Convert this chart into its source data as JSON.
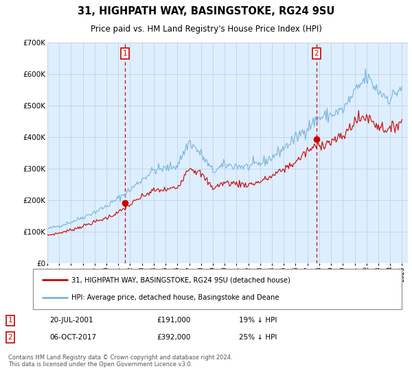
{
  "title1": "31, HIGHPATH WAY, BASINGSTOKE, RG24 9SU",
  "title2": "Price paid vs. HM Land Registry's House Price Index (HPI)",
  "legend_line1": "31, HIGHPATH WAY, BASINGSTOKE, RG24 9SU (detached house)",
  "legend_line2": "HPI: Average price, detached house, Basingstoke and Deane",
  "annotation1_label": "1",
  "annotation1_date": "20-JUL-2001",
  "annotation1_price": "£191,000",
  "annotation1_hpi": "19% ↓ HPI",
  "annotation2_label": "2",
  "annotation2_date": "06-OCT-2017",
  "annotation2_price": "£392,000",
  "annotation2_hpi": "25% ↓ HPI",
  "footer": "Contains HM Land Registry data © Crown copyright and database right 2024.\nThis data is licensed under the Open Government Licence v3.0.",
  "hpi_color": "#7ab4d8",
  "price_color": "#cc0000",
  "annot_color": "#cc0000",
  "ylim": [
    0,
    700000
  ],
  "yticks": [
    0,
    100000,
    200000,
    300000,
    400000,
    500000,
    600000,
    700000
  ],
  "ytick_labels": [
    "£0",
    "£100K",
    "£200K",
    "£300K",
    "£400K",
    "£500K",
    "£600K",
    "£700K"
  ],
  "sale1_x": 2001.55,
  "sale1_y": 191000,
  "sale2_x": 2017.76,
  "sale2_y": 392000,
  "xlim_min": 1995.0,
  "xlim_max": 2025.5,
  "xtick_years": [
    1995,
    1996,
    1997,
    1998,
    1999,
    2000,
    2001,
    2002,
    2003,
    2004,
    2005,
    2006,
    2007,
    2008,
    2009,
    2010,
    2011,
    2012,
    2013,
    2014,
    2015,
    2016,
    2017,
    2018,
    2019,
    2020,
    2021,
    2022,
    2023,
    2024,
    2025
  ],
  "bg_color": "#ddeeff",
  "grid_color": "#bbccdd",
  "plot_bg": "#ddeeff"
}
